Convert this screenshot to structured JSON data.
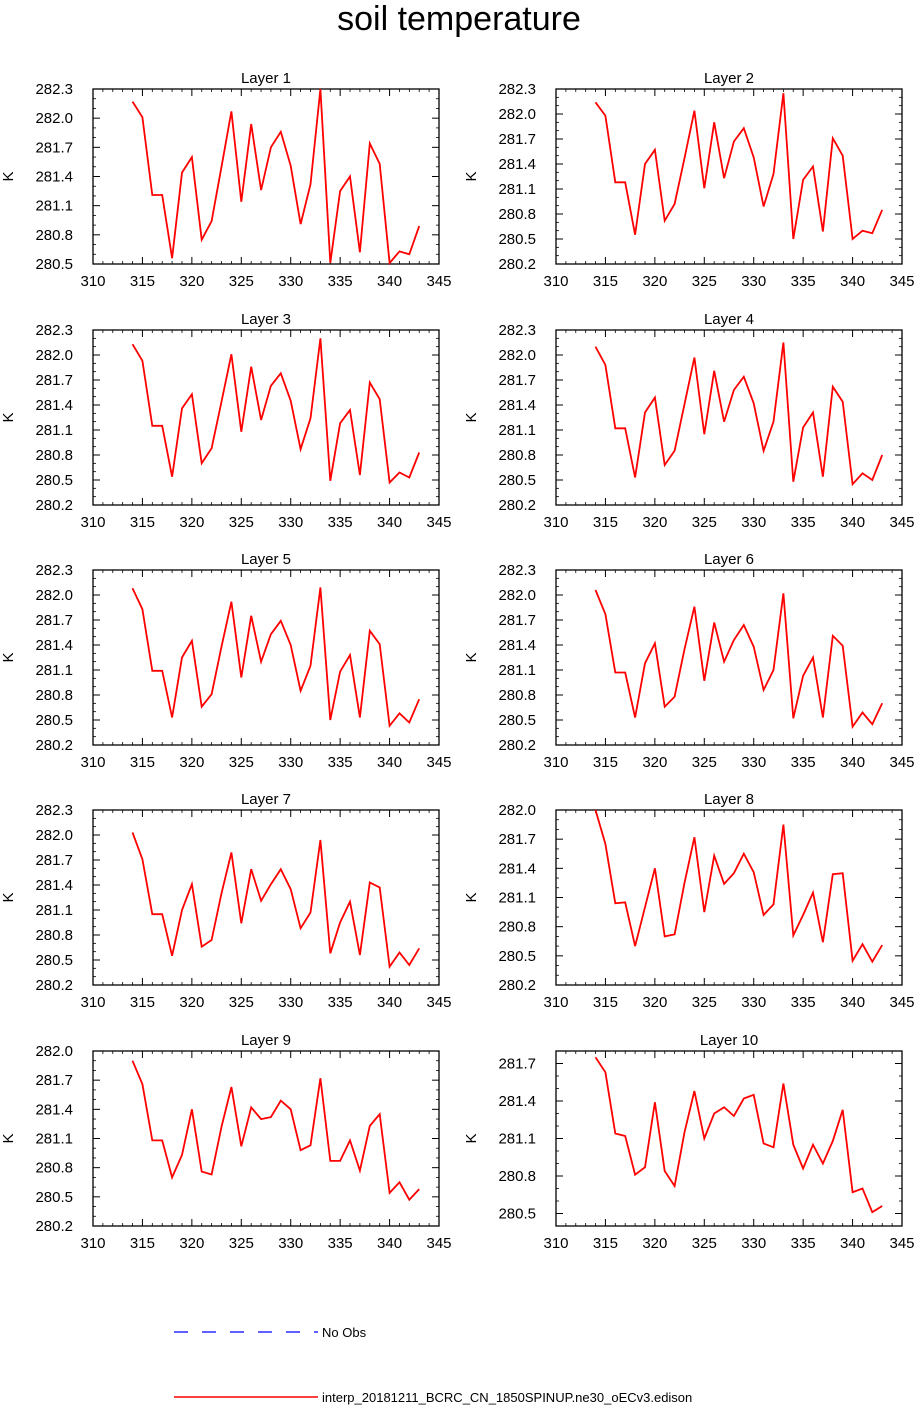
{
  "title": "soil temperature",
  "colors": {
    "model": "#ff0000",
    "obs": "#0000ff",
    "axis": "#000000"
  },
  "legend": {
    "obs_label": "No Obs",
    "model_label": "interp_20181211_BCRC_CN_1850SPINUP.ne30_oECv3.edison"
  },
  "chart_data": [
    {
      "type": "line",
      "title": "Layer 1",
      "ylabel": "K",
      "xlim": [
        310,
        345
      ],
      "ylim": [
        280.5,
        282.3
      ],
      "xticks": [
        "310",
        "315",
        "320",
        "325",
        "330",
        "335",
        "340",
        "345"
      ],
      "yticks": [
        "280.5",
        "280.8",
        "281.1",
        "281.4",
        "281.7",
        "282.0",
        "282.3"
      ],
      "x": [
        314,
        315,
        316,
        317,
        318,
        319,
        320,
        321,
        322,
        323,
        324,
        325,
        326,
        327,
        328,
        329,
        330,
        331,
        332,
        333,
        334,
        335,
        336,
        337,
        338,
        339,
        340,
        341,
        342,
        343
      ],
      "series": [
        {
          "name": "interp_20181211_BCRC_CN_1850SPINUP.ne30_oECv3.edison",
          "values": [
            282.17,
            282.01,
            281.21,
            281.21,
            280.56,
            281.44,
            281.6,
            280.75,
            280.94,
            281.5,
            282.07,
            281.14,
            281.94,
            281.26,
            281.7,
            281.86,
            281.51,
            280.91,
            281.32,
            282.3,
            280.51,
            281.25,
            281.4,
            280.62,
            281.74,
            281.53,
            280.51,
            280.63,
            280.6,
            280.89
          ]
        }
      ]
    },
    {
      "type": "line",
      "title": "Layer 2",
      "ylabel": "K",
      "xlim": [
        310,
        345
      ],
      "ylim": [
        280.2,
        282.3
      ],
      "xticks": [
        "310",
        "315",
        "320",
        "325",
        "330",
        "335",
        "340",
        "345"
      ],
      "yticks": [
        "280.2",
        "280.5",
        "280.8",
        "281.1",
        "281.4",
        "281.7",
        "282.0",
        "282.3"
      ],
      "x": [
        314,
        315,
        316,
        317,
        318,
        319,
        320,
        321,
        322,
        323,
        324,
        325,
        326,
        327,
        328,
        329,
        330,
        331,
        332,
        333,
        334,
        335,
        336,
        337,
        338,
        339,
        340,
        341,
        342,
        343
      ],
      "series": [
        {
          "name": "interp_20181211_BCRC_CN_1850SPINUP.ne30_oECv3.edison",
          "values": [
            282.14,
            281.98,
            281.18,
            281.18,
            280.55,
            281.4,
            281.57,
            280.72,
            280.92,
            281.47,
            282.04,
            281.11,
            281.9,
            281.23,
            281.67,
            281.83,
            281.48,
            280.89,
            281.28,
            282.25,
            280.5,
            281.21,
            281.37,
            280.59,
            281.71,
            281.5,
            280.5,
            280.6,
            280.57,
            280.85
          ]
        }
      ]
    },
    {
      "type": "line",
      "title": "Layer 3",
      "ylabel": "K",
      "xlim": [
        310,
        345
      ],
      "ylim": [
        280.2,
        282.3
      ],
      "xticks": [
        "310",
        "315",
        "320",
        "325",
        "330",
        "335",
        "340",
        "345"
      ],
      "yticks": [
        "280.2",
        "280.5",
        "280.8",
        "281.1",
        "281.4",
        "281.7",
        "282.0",
        "282.3"
      ],
      "x": [
        314,
        315,
        316,
        317,
        318,
        319,
        320,
        321,
        322,
        323,
        324,
        325,
        326,
        327,
        328,
        329,
        330,
        331,
        332,
        333,
        334,
        335,
        336,
        337,
        338,
        339,
        340,
        341,
        342,
        343
      ],
      "series": [
        {
          "name": "interp_20181211_BCRC_CN_1850SPINUP.ne30_oECv3.edison",
          "values": [
            282.13,
            281.93,
            281.15,
            281.15,
            280.54,
            281.36,
            281.53,
            280.7,
            280.88,
            281.44,
            282.01,
            281.08,
            281.86,
            281.22,
            281.63,
            281.78,
            281.45,
            280.87,
            281.24,
            282.2,
            280.49,
            281.18,
            281.34,
            280.56,
            281.67,
            281.47,
            280.47,
            280.59,
            280.53,
            280.83
          ]
        }
      ]
    },
    {
      "type": "line",
      "title": "Layer 4",
      "ylabel": "K",
      "xlim": [
        310,
        345
      ],
      "ylim": [
        280.2,
        282.3
      ],
      "xticks": [
        "310",
        "315",
        "320",
        "325",
        "330",
        "335",
        "340",
        "345"
      ],
      "yticks": [
        "280.2",
        "280.5",
        "280.8",
        "281.1",
        "281.4",
        "281.7",
        "282.0",
        "282.3"
      ],
      "x": [
        314,
        315,
        316,
        317,
        318,
        319,
        320,
        321,
        322,
        323,
        324,
        325,
        326,
        327,
        328,
        329,
        330,
        331,
        332,
        333,
        334,
        335,
        336,
        337,
        338,
        339,
        340,
        341,
        342,
        343
      ],
      "series": [
        {
          "name": "interp_20181211_BCRC_CN_1850SPINUP.ne30_oECv3.edison",
          "values": [
            282.1,
            281.88,
            281.12,
            281.12,
            280.53,
            281.31,
            281.49,
            280.68,
            280.85,
            281.41,
            281.97,
            281.05,
            281.81,
            281.2,
            281.58,
            281.74,
            281.42,
            280.85,
            281.2,
            282.15,
            280.48,
            281.13,
            281.31,
            280.54,
            281.62,
            281.44,
            280.45,
            280.58,
            280.5,
            280.8
          ]
        }
      ]
    },
    {
      "type": "line",
      "title": "Layer 5",
      "ylabel": "K",
      "xlim": [
        310,
        345
      ],
      "ylim": [
        280.2,
        282.3
      ],
      "xticks": [
        "310",
        "315",
        "320",
        "325",
        "330",
        "335",
        "340",
        "345"
      ],
      "yticks": [
        "280.2",
        "280.5",
        "280.8",
        "281.1",
        "281.4",
        "281.7",
        "282.0",
        "282.3"
      ],
      "x": [
        314,
        315,
        316,
        317,
        318,
        319,
        320,
        321,
        322,
        323,
        324,
        325,
        326,
        327,
        328,
        329,
        330,
        331,
        332,
        333,
        334,
        335,
        336,
        337,
        338,
        339,
        340,
        341,
        342,
        343
      ],
      "series": [
        {
          "name": "interp_20181211_BCRC_CN_1850SPINUP.ne30_oECv3.edison",
          "values": [
            282.08,
            281.83,
            281.09,
            281.09,
            280.53,
            281.25,
            281.45,
            280.66,
            280.81,
            281.38,
            281.92,
            281.01,
            281.75,
            281.2,
            281.53,
            281.69,
            281.4,
            280.85,
            281.15,
            282.09,
            280.5,
            281.08,
            281.28,
            280.53,
            281.57,
            281.41,
            280.43,
            280.58,
            280.47,
            280.75
          ]
        }
      ]
    },
    {
      "type": "line",
      "title": "Layer 6",
      "ylabel": "K",
      "xlim": [
        310,
        345
      ],
      "ylim": [
        280.2,
        282.3
      ],
      "xticks": [
        "310",
        "315",
        "320",
        "325",
        "330",
        "335",
        "340",
        "345"
      ],
      "yticks": [
        "280.2",
        "280.5",
        "280.8",
        "281.1",
        "281.4",
        "281.7",
        "282.0",
        "282.3"
      ],
      "x": [
        314,
        315,
        316,
        317,
        318,
        319,
        320,
        321,
        322,
        323,
        324,
        325,
        326,
        327,
        328,
        329,
        330,
        331,
        332,
        333,
        334,
        335,
        336,
        337,
        338,
        339,
        340,
        341,
        342,
        343
      ],
      "series": [
        {
          "name": "interp_20181211_BCRC_CN_1850SPINUP.ne30_oECv3.edison",
          "values": [
            282.06,
            281.77,
            281.07,
            281.07,
            280.53,
            281.18,
            281.42,
            280.66,
            280.78,
            281.35,
            281.86,
            280.97,
            281.67,
            281.2,
            281.46,
            281.64,
            281.38,
            280.86,
            281.1,
            282.02,
            280.52,
            281.03,
            281.25,
            280.53,
            281.51,
            281.39,
            280.42,
            280.59,
            280.45,
            280.7
          ]
        }
      ]
    },
    {
      "type": "line",
      "title": "Layer 7",
      "ylabel": "K",
      "xlim": [
        310,
        345
      ],
      "ylim": [
        280.2,
        282.3
      ],
      "xticks": [
        "310",
        "315",
        "320",
        "325",
        "330",
        "335",
        "340",
        "345"
      ],
      "yticks": [
        "280.2",
        "280.5",
        "280.8",
        "281.1",
        "281.4",
        "281.7",
        "282.0",
        "282.3"
      ],
      "x": [
        314,
        315,
        316,
        317,
        318,
        319,
        320,
        321,
        322,
        323,
        324,
        325,
        326,
        327,
        328,
        329,
        330,
        331,
        332,
        333,
        334,
        335,
        336,
        337,
        338,
        339,
        340,
        341,
        342,
        343
      ],
      "series": [
        {
          "name": "interp_20181211_BCRC_CN_1850SPINUP.ne30_oECv3.edison",
          "values": [
            282.03,
            281.71,
            281.05,
            281.05,
            280.55,
            281.1,
            281.41,
            280.66,
            280.74,
            281.3,
            281.79,
            280.94,
            281.59,
            281.21,
            281.41,
            281.59,
            281.35,
            280.88,
            281.07,
            281.94,
            280.58,
            280.95,
            281.2,
            280.56,
            281.43,
            281.37,
            280.42,
            280.59,
            280.44,
            280.64
          ]
        }
      ]
    },
    {
      "type": "line",
      "title": "Layer 8",
      "ylabel": "K",
      "xlim": [
        310,
        345
      ],
      "ylim": [
        280.2,
        282.0
      ],
      "xticks": [
        "310",
        "315",
        "320",
        "325",
        "330",
        "335",
        "340",
        "345"
      ],
      "yticks": [
        "280.2",
        "280.5",
        "280.8",
        "281.1",
        "281.4",
        "281.7",
        "282.0"
      ],
      "x": [
        314,
        315,
        316,
        317,
        318,
        319,
        320,
        321,
        322,
        323,
        324,
        325,
        326,
        327,
        328,
        329,
        330,
        331,
        332,
        333,
        334,
        335,
        336,
        337,
        338,
        339,
        340,
        341,
        342,
        343
      ],
      "series": [
        {
          "name": "interp_20181211_BCRC_CN_1850SPINUP.ne30_oECv3.edison",
          "values": [
            282.0,
            281.65,
            281.04,
            281.05,
            280.6,
            281.0,
            281.4,
            280.7,
            280.72,
            281.25,
            281.72,
            280.95,
            281.53,
            281.24,
            281.35,
            281.55,
            281.36,
            280.92,
            281.03,
            281.85,
            280.71,
            280.92,
            281.15,
            280.64,
            281.34,
            281.35,
            280.45,
            280.62,
            280.44,
            280.61
          ]
        }
      ]
    },
    {
      "type": "line",
      "title": "Layer 9",
      "ylabel": "K",
      "xlim": [
        310,
        345
      ],
      "ylim": [
        280.2,
        282.0
      ],
      "xticks": [
        "310",
        "315",
        "320",
        "325",
        "330",
        "335",
        "340",
        "345"
      ],
      "yticks": [
        "280.2",
        "280.5",
        "280.8",
        "281.1",
        "281.4",
        "281.7",
        "282.0"
      ],
      "x": [
        314,
        315,
        316,
        317,
        318,
        319,
        320,
        321,
        322,
        323,
        324,
        325,
        326,
        327,
        328,
        329,
        330,
        331,
        332,
        333,
        334,
        335,
        336,
        337,
        338,
        339,
        340,
        341,
        342,
        343
      ],
      "series": [
        {
          "name": "interp_20181211_BCRC_CN_1850SPINUP.ne30_oECv3.edison",
          "values": [
            281.9,
            281.66,
            281.08,
            281.08,
            280.7,
            280.93,
            281.4,
            280.76,
            280.73,
            281.22,
            281.63,
            281.02,
            281.42,
            281.3,
            281.32,
            281.49,
            281.4,
            280.98,
            281.03,
            281.72,
            280.87,
            280.87,
            281.08,
            280.77,
            281.23,
            281.35,
            280.54,
            280.65,
            280.47,
            280.58
          ]
        }
      ]
    },
    {
      "type": "line",
      "title": "Layer 10",
      "ylabel": "K",
      "xlim": [
        310,
        345
      ],
      "ylim": [
        280.4,
        281.8
      ],
      "xticks": [
        "310",
        "315",
        "320",
        "325",
        "330",
        "335",
        "340",
        "345"
      ],
      "yticks": [
        "280.5",
        "280.8",
        "281.1",
        "281.4",
        "281.7"
      ],
      "x": [
        314,
        315,
        316,
        317,
        318,
        319,
        320,
        321,
        322,
        323,
        324,
        325,
        326,
        327,
        328,
        329,
        330,
        331,
        332,
        333,
        334,
        335,
        336,
        337,
        338,
        339,
        340,
        341,
        342,
        343
      ],
      "series": [
        {
          "name": "interp_20181211_BCRC_CN_1850SPINUP.ne30_oECv3.edison",
          "values": [
            281.75,
            281.63,
            281.14,
            281.12,
            280.81,
            280.87,
            281.39,
            280.84,
            280.72,
            281.15,
            281.48,
            281.1,
            281.3,
            281.35,
            281.28,
            281.42,
            281.45,
            281.06,
            281.03,
            281.54,
            281.05,
            280.86,
            281.05,
            280.9,
            281.08,
            281.33,
            280.67,
            280.7,
            280.51,
            280.56
          ]
        }
      ]
    }
  ]
}
